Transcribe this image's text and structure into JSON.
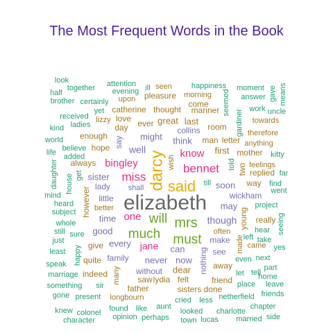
{
  "chart_data": {
    "type": "wordcloud",
    "title": "The Most Frequent Words in the Book",
    "palette": {
      "teal": "#1b9e77",
      "orange": "#d95f02",
      "purple": "#7570b3",
      "pink": "#e7298a",
      "green": "#66a61e",
      "gold": "#e6ab02",
      "brown": "#a6761d",
      "gray": "#666666"
    },
    "words": [
      {
        "text": "elizabeth",
        "color": "gray"
      },
      {
        "text": "darcy",
        "color": "gold"
      },
      {
        "text": "said",
        "color": "gold"
      },
      {
        "text": "mrs",
        "color": "green"
      },
      {
        "text": "much",
        "color": "green"
      },
      {
        "text": "must",
        "color": "green"
      },
      {
        "text": "will",
        "color": "green"
      },
      {
        "text": "bennet",
        "color": "pink"
      },
      {
        "text": "miss",
        "color": "pink"
      },
      {
        "text": "bingley",
        "color": "pink"
      },
      {
        "text": "one",
        "color": "pink"
      },
      {
        "text": "jane",
        "color": "pink"
      },
      {
        "text": "know",
        "color": "pink"
      },
      {
        "text": "though",
        "color": "purple"
      },
      {
        "text": "soon",
        "color": "purple"
      },
      {
        "text": "well",
        "color": "purple"
      },
      {
        "text": "might",
        "color": "purple"
      },
      {
        "text": "never",
        "color": "purple"
      },
      {
        "text": "now",
        "color": "purple"
      },
      {
        "text": "can",
        "color": "purple"
      },
      {
        "text": "every",
        "color": "purple"
      },
      {
        "text": "good",
        "color": "purple"
      },
      {
        "text": "time",
        "color": "purple"
      },
      {
        "text": "sister",
        "color": "purple"
      },
      {
        "text": "lady",
        "color": "purple"
      },
      {
        "text": "shall",
        "color": "purple"
      },
      {
        "text": "without",
        "color": "purple"
      },
      {
        "text": "family",
        "color": "purple"
      },
      {
        "text": "may",
        "color": "purple"
      },
      {
        "text": "make",
        "color": "purple"
      },
      {
        "text": "see",
        "color": "purple"
      },
      {
        "text": "wickham",
        "color": "purple"
      },
      {
        "text": "think",
        "color": "purple"
      },
      {
        "text": "collins",
        "color": "purple"
      },
      {
        "text": "say",
        "color": "purple"
      },
      {
        "text": "nothing",
        "color": "purple"
      },
      {
        "text": "little",
        "color": "purple"
      },
      {
        "text": "man",
        "color": "brown"
      },
      {
        "text": "letter",
        "color": "brown"
      },
      {
        "text": "first",
        "color": "brown"
      },
      {
        "text": "room",
        "color": "brown"
      },
      {
        "text": "last",
        "color": "brown"
      },
      {
        "text": "great",
        "color": "brown"
      },
      {
        "text": "thought",
        "color": "brown"
      },
      {
        "text": "catherine",
        "color": "brown"
      },
      {
        "text": "ever",
        "color": "brown"
      },
      {
        "text": "day",
        "color": "brown"
      },
      {
        "text": "enough",
        "color": "brown"
      },
      {
        "text": "hope",
        "color": "brown"
      },
      {
        "text": "always",
        "color": "brown"
      },
      {
        "text": "however",
        "color": "brown"
      },
      {
        "text": "better",
        "color": "brown"
      },
      {
        "text": "give",
        "color": "brown"
      },
      {
        "text": "quite",
        "color": "brown"
      },
      {
        "text": "indeed",
        "color": "brown"
      },
      {
        "text": "many",
        "color": "brown"
      },
      {
        "text": "father",
        "color": "brown"
      },
      {
        "text": "longbourn",
        "color": "brown"
      },
      {
        "text": "lydia",
        "color": "brown"
      },
      {
        "text": "saw",
        "color": "brown"
      },
      {
        "text": "felt",
        "color": "brown"
      },
      {
        "text": "dear",
        "color": "brown"
      },
      {
        "text": "sisters",
        "color": "brown"
      },
      {
        "text": "done",
        "color": "brown"
      },
      {
        "text": "friend",
        "color": "brown"
      },
      {
        "text": "away",
        "color": "brown"
      },
      {
        "text": "often",
        "color": "brown"
      },
      {
        "text": "young",
        "color": "brown"
      },
      {
        "text": "two",
        "color": "brown"
      },
      {
        "text": "mother",
        "color": "brown"
      },
      {
        "text": "replied",
        "color": "brown"
      },
      {
        "text": "feelings",
        "color": "brown"
      },
      {
        "text": "way",
        "color": "brown"
      },
      {
        "text": "really",
        "color": "brown"
      },
      {
        "text": "made",
        "color": "brown"
      },
      {
        "text": "came",
        "color": "brown"
      },
      {
        "text": "pleasure",
        "color": "brown"
      },
      {
        "text": "manner",
        "color": "brown"
      },
      {
        "text": "come",
        "color": "brown"
      },
      {
        "text": "morning",
        "color": "brown"
      },
      {
        "text": "lizzy",
        "color": "brown"
      },
      {
        "text": "love",
        "color": "brown"
      },
      {
        "text": "wish",
        "color": "brown"
      },
      {
        "text": "upon",
        "color": "brown"
      },
      {
        "text": "seen",
        "color": "brown"
      },
      {
        "text": "anything",
        "color": "brown"
      },
      {
        "text": "towards",
        "color": "brown"
      },
      {
        "text": "therefore",
        "color": "brown"
      },
      {
        "text": "uncle",
        "color": "teal"
      },
      {
        "text": "look",
        "color": "teal"
      },
      {
        "text": "together",
        "color": "teal"
      },
      {
        "text": "attention",
        "color": "teal"
      },
      {
        "text": "happiness",
        "color": "teal"
      },
      {
        "text": "moment",
        "color": "teal"
      },
      {
        "text": "gave",
        "color": "teal"
      },
      {
        "text": "means",
        "color": "teal"
      },
      {
        "text": "half",
        "color": "teal"
      },
      {
        "text": "evening",
        "color": "teal"
      },
      {
        "text": "ill",
        "color": "teal"
      },
      {
        "text": "brother",
        "color": "teal"
      },
      {
        "text": "certainly",
        "color": "teal"
      },
      {
        "text": "seemed",
        "color": "teal"
      },
      {
        "text": "answer",
        "color": "teal"
      },
      {
        "text": "received",
        "color": "teal"
      },
      {
        "text": "yet",
        "color": "teal"
      },
      {
        "text": "work",
        "color": "teal"
      },
      {
        "text": "kind",
        "color": "teal"
      },
      {
        "text": "ladies",
        "color": "teal"
      },
      {
        "text": "gardiner",
        "color": "teal"
      },
      {
        "text": "world",
        "color": "teal"
      },
      {
        "text": "believe",
        "color": "teal"
      },
      {
        "text": "life",
        "color": "teal"
      },
      {
        "text": "added",
        "color": "teal"
      },
      {
        "text": "kitty",
        "color": "teal"
      },
      {
        "text": "daughter",
        "color": "teal"
      },
      {
        "text": "get",
        "color": "teal"
      },
      {
        "text": "told",
        "color": "teal"
      },
      {
        "text": "far",
        "color": "teal"
      },
      {
        "text": "house",
        "color": "teal"
      },
      {
        "text": "till",
        "color": "teal"
      },
      {
        "text": "find",
        "color": "teal"
      },
      {
        "text": "mind",
        "color": "teal"
      },
      {
        "text": "went",
        "color": "teal"
      },
      {
        "text": "heard",
        "color": "teal"
      },
      {
        "text": "project",
        "color": "teal"
      },
      {
        "text": "subject",
        "color": "teal"
      },
      {
        "text": "whole",
        "color": "teal"
      },
      {
        "text": "seeing",
        "color": "teal"
      },
      {
        "text": "still",
        "color": "teal"
      },
      {
        "text": "sure",
        "color": "teal"
      },
      {
        "text": "hear",
        "color": "teal"
      },
      {
        "text": "just",
        "color": "teal"
      },
      {
        "text": "left",
        "color": "teal"
      },
      {
        "text": "least",
        "color": "teal"
      },
      {
        "text": "happy",
        "color": "teal"
      },
      {
        "text": "yes",
        "color": "teal"
      },
      {
        "text": "speak",
        "color": "teal"
      },
      {
        "text": "even",
        "color": "teal"
      },
      {
        "text": "next",
        "color": "teal"
      },
      {
        "text": "marriage",
        "color": "teal"
      },
      {
        "text": "part",
        "color": "teal"
      },
      {
        "text": "let",
        "color": "teal"
      },
      {
        "text": "tell",
        "color": "teal"
      },
      {
        "text": "home",
        "color": "teal"
      },
      {
        "text": "something",
        "color": "teal"
      },
      {
        "text": "sir",
        "color": "teal"
      },
      {
        "text": "place",
        "color": "teal"
      },
      {
        "text": "leave",
        "color": "teal"
      },
      {
        "text": "gone",
        "color": "teal"
      },
      {
        "text": "present",
        "color": "teal"
      },
      {
        "text": "netherfield",
        "color": "teal"
      },
      {
        "text": "friends",
        "color": "teal"
      },
      {
        "text": "knew",
        "color": "teal"
      },
      {
        "text": "colonel",
        "color": "teal"
      },
      {
        "text": "found",
        "color": "teal"
      },
      {
        "text": "like",
        "color": "teal"
      },
      {
        "text": "chapter",
        "color": "teal"
      },
      {
        "text": "character",
        "color": "teal"
      },
      {
        "text": "opinion",
        "color": "teal"
      },
      {
        "text": "perhaps",
        "color": "teal"
      },
      {
        "text": "town",
        "color": "teal"
      },
      {
        "text": "lucas",
        "color": "teal"
      },
      {
        "text": "married",
        "color": "teal"
      },
      {
        "text": "side",
        "color": "teal"
      },
      {
        "text": "aunt",
        "color": "teal"
      },
      {
        "text": "looked",
        "color": "teal"
      },
      {
        "text": "charlotte",
        "color": "teal"
      },
      {
        "text": "less",
        "color": "teal"
      },
      {
        "text": "cried",
        "color": "teal"
      },
      {
        "text": "take",
        "color": "teal"
      }
    ]
  }
}
